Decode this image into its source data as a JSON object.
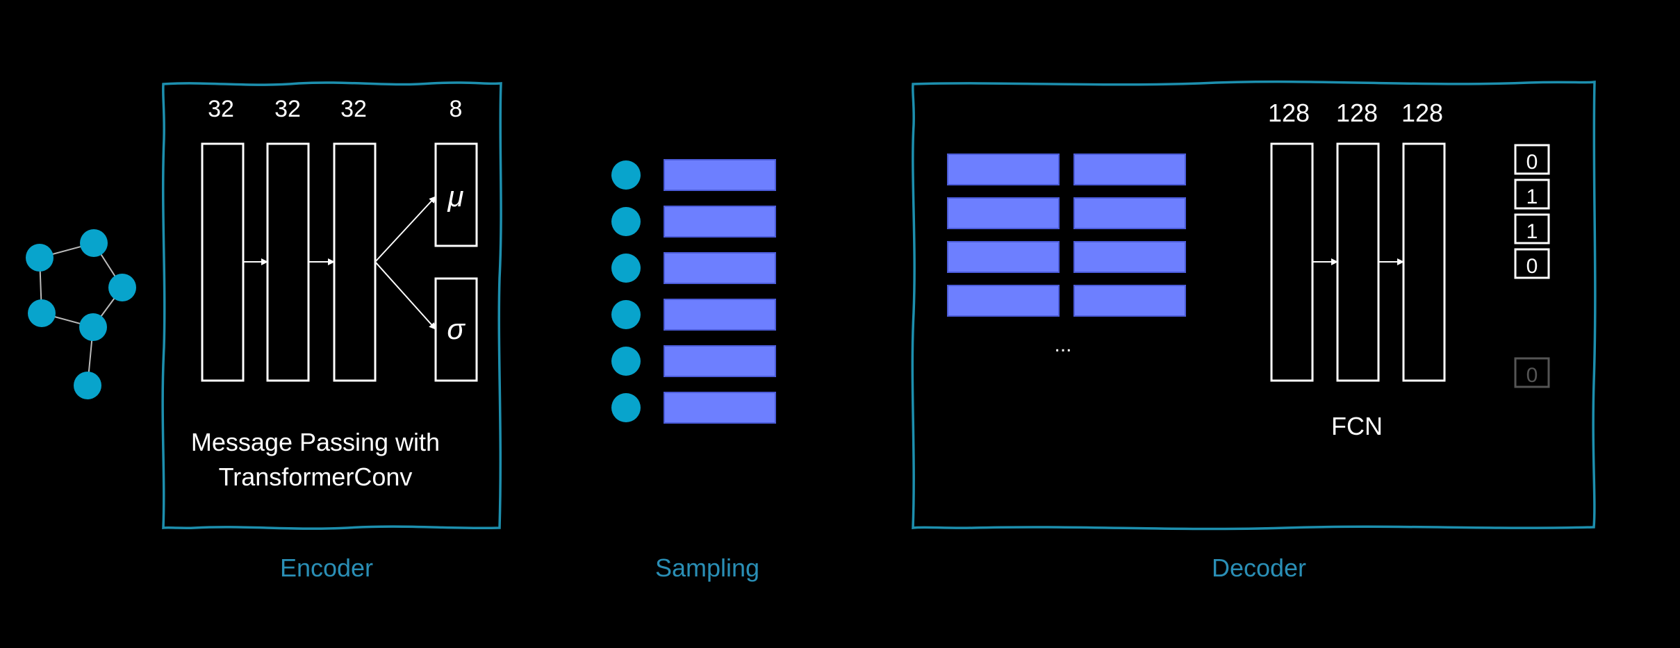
{
  "colors": {
    "background": "#000000",
    "frame": "#1d8fae",
    "node": "#08a4cc",
    "embedding": "#6d7fff",
    "label": "#2a8fb6",
    "line": "#ffffff"
  },
  "encoder": {
    "layer_sizes": [
      "32",
      "32",
      "32",
      "8"
    ],
    "mu_symbol": "μ",
    "sigma_symbol": "σ",
    "caption_line1": "Message Passing with",
    "caption_line2": "TransformerConv",
    "section_label": "Encoder"
  },
  "sampling": {
    "node_count": 6,
    "section_label": "Sampling"
  },
  "decoder": {
    "layer_sizes": [
      "128",
      "128",
      "128"
    ],
    "ellipsis": "...",
    "fcn_label": "FCN",
    "outputs": [
      "0",
      "1",
      "1",
      "0"
    ],
    "faded_output": "0",
    "section_label": "Decoder"
  }
}
